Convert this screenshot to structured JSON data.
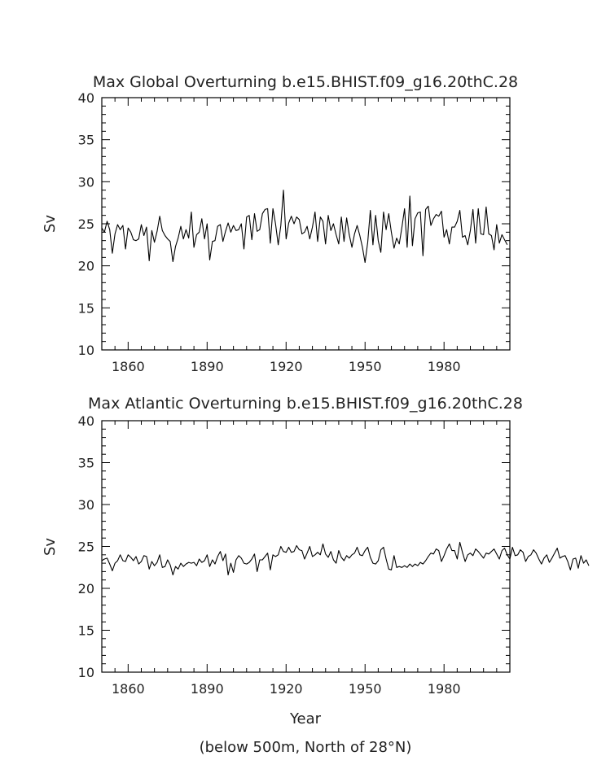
{
  "chart_data": [
    {
      "type": "line",
      "title": "Max Global Overturning b.e15.BHIST.f09_g16.20thC.28",
      "xlabel": "",
      "ylabel": "Sv",
      "xlim": [
        1850,
        2005
      ],
      "ylim": [
        10,
        40
      ],
      "x_ticks": [
        1860,
        1890,
        1920,
        1950,
        1980
      ],
      "y_ticks": [
        10,
        15,
        20,
        25,
        30,
        35,
        40
      ],
      "grid": false,
      "series": [
        {
          "x_start": 1850,
          "x_step": 1,
          "values": [
            24.5,
            24.0,
            25.3,
            24.3,
            21.5,
            23.8,
            24.9,
            24.3,
            24.8,
            22.0,
            24.5,
            24.0,
            23.1,
            23.0,
            23.2,
            24.9,
            23.6,
            24.6,
            20.6,
            24.2,
            22.8,
            24.1,
            25.9,
            24.2,
            23.6,
            23.2,
            22.9,
            20.5,
            22.3,
            23.3,
            24.7,
            23.2,
            24.3,
            23.3,
            26.4,
            22.2,
            23.7,
            24.0,
            25.6,
            23.2,
            25.0,
            20.7,
            22.9,
            23.0,
            24.7,
            24.9,
            22.9,
            24.1,
            25.1,
            24.0,
            24.8,
            24.2,
            24.3,
            25.0,
            22.0,
            25.8,
            26.0,
            23.1,
            26.2,
            24.1,
            24.3,
            26.2,
            26.7,
            26.8,
            22.7,
            26.8,
            25.0,
            22.5,
            24.8,
            29.0,
            23.2,
            25.1,
            25.9,
            25.0,
            25.8,
            25.5,
            23.8,
            24.0,
            24.7,
            23.2,
            24.6,
            26.4,
            22.9,
            25.8,
            25.3,
            22.6,
            26.0,
            24.2,
            25.0,
            23.7,
            22.6,
            25.8,
            22.9,
            25.7,
            23.7,
            22.2,
            23.8,
            24.8,
            23.6,
            22.2,
            20.4,
            22.8,
            26.6,
            22.5,
            26.0,
            23.0,
            21.6,
            26.4,
            24.3,
            26.2,
            24.0,
            22.1,
            23.3,
            22.6,
            24.6,
            26.8,
            22.2,
            28.3,
            22.4,
            25.6,
            26.3,
            26.4,
            21.2,
            26.7,
            27.1,
            24.8,
            25.6,
            26.1,
            25.9,
            26.5,
            23.4,
            24.3,
            22.6,
            24.6,
            24.6,
            25.3,
            26.6,
            23.4,
            23.6,
            22.5,
            24.2,
            26.7,
            22.7,
            26.8,
            23.8,
            23.7,
            27.0,
            23.8,
            23.6,
            21.9,
            24.9,
            22.7,
            23.7,
            23.1,
            22.5
          ]
        }
      ]
    },
    {
      "type": "line",
      "title": "Max Atlantic Overturning b.e15.BHIST.f09_g16.20thC.28",
      "xlabel": "Year",
      "ylabel": "Sv",
      "xlim": [
        1850,
        2005
      ],
      "ylim": [
        10,
        40
      ],
      "x_ticks": [
        1860,
        1890,
        1920,
        1950,
        1980
      ],
      "y_ticks": [
        10,
        15,
        20,
        25,
        30,
        35,
        40
      ],
      "grid": false,
      "series": [
        {
          "x_start": 1850,
          "x_step": 1,
          "values": [
            23.3,
            23.5,
            23.6,
            22.9,
            22.1,
            23.0,
            23.3,
            24.0,
            23.3,
            23.2,
            24.0,
            23.7,
            23.3,
            23.8,
            22.9,
            23.2,
            23.9,
            23.8,
            22.3,
            23.2,
            22.7,
            23.1,
            24.0,
            22.5,
            22.6,
            23.4,
            22.8,
            21.6,
            22.6,
            22.3,
            23.0,
            22.6,
            22.9,
            23.1,
            23.0,
            23.1,
            22.7,
            23.5,
            23.1,
            23.3,
            24.0,
            22.6,
            23.4,
            22.9,
            23.8,
            24.4,
            23.3,
            24.1,
            21.6,
            23.0,
            21.9,
            23.4,
            23.9,
            23.6,
            23.0,
            22.9,
            23.1,
            23.5,
            24.1,
            22.0,
            23.4,
            23.4,
            23.8,
            24.2,
            22.2,
            24.0,
            23.8,
            24.0,
            25.0,
            24.4,
            24.3,
            24.9,
            24.3,
            24.4,
            25.1,
            24.6,
            24.5,
            23.5,
            24.2,
            25.0,
            23.8,
            24.0,
            24.3,
            24.0,
            25.3,
            24.1,
            23.7,
            24.4,
            23.4,
            23.0,
            24.5,
            23.7,
            23.3,
            23.9,
            23.6,
            24.0,
            24.2,
            24.9,
            24.0,
            23.9,
            24.5,
            24.9,
            23.7,
            23.0,
            22.9,
            23.3,
            24.6,
            24.9,
            23.5,
            22.3,
            22.2,
            23.9,
            22.5,
            22.6,
            22.5,
            22.7,
            22.5,
            22.9,
            22.6,
            22.9,
            22.7,
            23.1,
            22.9,
            23.3,
            23.8,
            24.2,
            24.1,
            24.7,
            24.5,
            23.2,
            23.9,
            24.7,
            25.3,
            24.5,
            24.5,
            23.5,
            25.5,
            24.3,
            23.2,
            24.0,
            24.2,
            23.9,
            24.7,
            24.4,
            24.0,
            23.6,
            24.2,
            24.1,
            24.4,
            24.7,
            24.1,
            23.5,
            24.5,
            24.8,
            24.0,
            23.5,
            24.9,
            23.9,
            24.0,
            24.6,
            24.3,
            23.2,
            23.8,
            24.0,
            24.6,
            24.2,
            23.5,
            22.9,
            23.6,
            24.0,
            23.1,
            23.6,
            24.2,
            24.8,
            23.6,
            23.8,
            23.9,
            23.2,
            22.2,
            23.5,
            23.6,
            22.4,
            23.9,
            23.0,
            23.4,
            22.7
          ]
        }
      ]
    }
  ],
  "footnote": "(below 500m, North of 28°N)"
}
